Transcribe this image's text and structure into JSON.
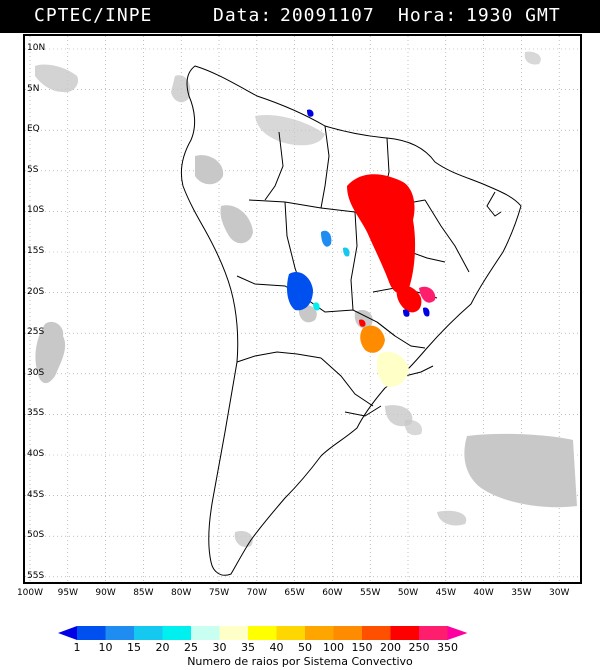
{
  "header": {
    "agency": "CPTEC/INPE",
    "date_label": "Data:",
    "date_value": "20091107",
    "time_label": "Hora:",
    "time_value": "1930 GMT"
  },
  "lat_labels": [
    "10N",
    "5N",
    "EQ",
    "5S",
    "10S",
    "15S",
    "20S",
    "25S",
    "30S",
    "35S",
    "40S",
    "45S",
    "50S",
    "55S"
  ],
  "lon_labels": [
    "100W",
    "95W",
    "90W",
    "85W",
    "80W",
    "75W",
    "70W",
    "65W",
    "60W",
    "55W",
    "50W",
    "45W",
    "40W",
    "35W",
    "30W"
  ],
  "colorbar": {
    "values": [
      "1",
      "10",
      "15",
      "20",
      "25",
      "30",
      "35",
      "40",
      "50",
      "100",
      "150",
      "200",
      "250",
      "350"
    ],
    "colors": [
      "#0000e6",
      "#0050f0",
      "#1e8cf0",
      "#14c8f0",
      "#00f0f0",
      "#c8fff0",
      "#ffffc8",
      "#ffff00",
      "#ffd700",
      "#ffa500",
      "#ff8c00",
      "#ff5000",
      "#ff0000",
      "#ff1e6e",
      "#ff00a0"
    ],
    "title": "Numero de raios por Sistema Convectivo"
  },
  "map": {
    "extent_lon": [
      -100,
      -26
    ],
    "extent_lat": [
      -56,
      12
    ],
    "cloud_color": "#c8c8c8",
    "boundary_color": "#000000"
  }
}
